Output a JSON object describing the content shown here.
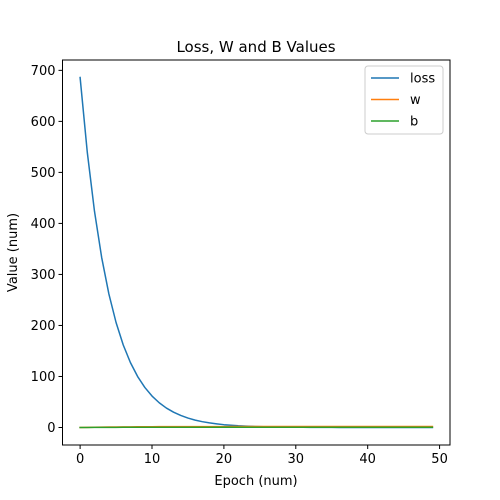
{
  "chart_data": {
    "type": "line",
    "title": "Loss, W and B Values",
    "xlabel": "Epoch (num)",
    "ylabel": "Value (num)",
    "xlim": [
      -2.45,
      51.45
    ],
    "ylim": [
      -34.3,
      720.3
    ],
    "x_ticks": [
      0,
      10,
      20,
      30,
      40,
      50
    ],
    "y_ticks": [
      0,
      100,
      200,
      300,
      400,
      500,
      600,
      700
    ],
    "grid": false,
    "legend_position": "top-right",
    "x": [
      0,
      1,
      2,
      3,
      4,
      5,
      6,
      7,
      8,
      9,
      10,
      11,
      12,
      13,
      14,
      15,
      16,
      17,
      18,
      19,
      20,
      21,
      22,
      23,
      24,
      25,
      26,
      27,
      28,
      29,
      30,
      31,
      32,
      33,
      34,
      35,
      36,
      37,
      38,
      39,
      40,
      41,
      42,
      43,
      44,
      45,
      46,
      47,
      48,
      49
    ],
    "series": [
      {
        "name": "loss",
        "color": "#1f77b4",
        "values": [
          686,
          539.2,
          423.8,
          333.1,
          261.8,
          205.8,
          161.7,
          127.1,
          99.9,
          78.5,
          61.7,
          48.5,
          38.1,
          30.0,
          23.6,
          18.5,
          14.5,
          11.4,
          9.0,
          7.1,
          5.5,
          4.4,
          3.4,
          2.7,
          2.1,
          1.7,
          1.3,
          1.0,
          0.8,
          0.6,
          0.5,
          0.4,
          0.3,
          0.3,
          0.2,
          0.2,
          0.1,
          0.1,
          0.1,
          0.1,
          0.1,
          0.0,
          0.0,
          0.0,
          0.0,
          0.0,
          0.0,
          0.0,
          0.0,
          0.0
        ]
      },
      {
        "name": "w",
        "color": "#ff7f0e",
        "values": [
          0.0,
          0.3,
          0.6,
          0.8,
          1.0,
          1.1,
          1.2,
          1.3,
          1.4,
          1.5,
          1.5,
          1.6,
          1.6,
          1.7,
          1.7,
          1.7,
          1.8,
          1.8,
          1.8,
          1.8,
          1.8,
          1.9,
          1.9,
          1.9,
          1.9,
          1.9,
          1.9,
          1.9,
          1.9,
          1.9,
          1.9,
          1.9,
          1.9,
          2.0,
          2.0,
          2.0,
          2.0,
          2.0,
          2.0,
          2.0,
          2.0,
          2.0,
          2.0,
          2.0,
          2.0,
          2.0,
          2.0,
          2.0,
          2.0,
          2.0
        ]
      },
      {
        "name": "b",
        "color": "#2ca02c",
        "values": [
          0.0,
          0.1,
          0.2,
          0.2,
          0.3,
          0.3,
          0.4,
          0.4,
          0.4,
          0.5,
          0.5,
          0.5,
          0.5,
          0.5,
          0.6,
          0.6,
          0.6,
          0.6,
          0.6,
          0.6,
          0.6,
          0.6,
          0.6,
          0.6,
          0.6,
          0.6,
          0.6,
          0.6,
          0.6,
          0.6,
          0.6,
          0.6,
          0.6,
          0.6,
          0.6,
          0.6,
          0.6,
          0.6,
          0.6,
          0.6,
          0.6,
          0.6,
          0.6,
          0.6,
          0.6,
          0.6,
          0.6,
          0.6,
          0.6,
          0.6
        ]
      }
    ]
  }
}
